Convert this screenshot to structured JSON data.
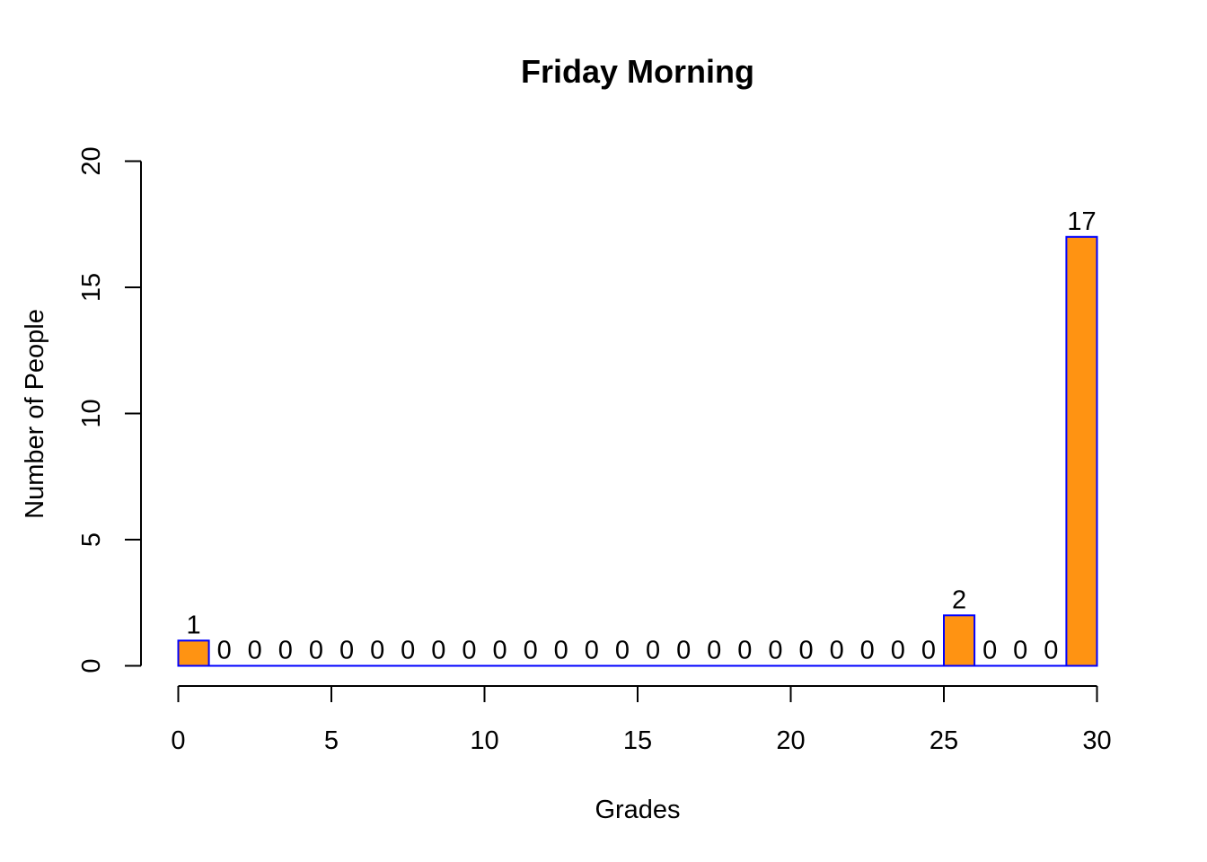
{
  "chart_data": {
    "type": "bar",
    "title": "Friday Morning",
    "xlabel": "Grades",
    "ylabel": "Number of People",
    "bin_width": 1,
    "bins_start": [
      0,
      1,
      2,
      3,
      4,
      5,
      6,
      7,
      8,
      9,
      10,
      11,
      12,
      13,
      14,
      15,
      16,
      17,
      18,
      19,
      20,
      21,
      22,
      23,
      24,
      25,
      26,
      27,
      28,
      29
    ],
    "values": [
      1,
      0,
      0,
      0,
      0,
      0,
      0,
      0,
      0,
      0,
      0,
      0,
      0,
      0,
      0,
      0,
      0,
      0,
      0,
      0,
      0,
      0,
      0,
      0,
      0,
      2,
      0,
      0,
      0,
      17
    ],
    "xlim": [
      0,
      30
    ],
    "ylim": [
      0,
      20
    ],
    "x_ticks": [
      "0",
      "5",
      "10",
      "15",
      "20",
      "25",
      "30"
    ],
    "y_ticks": [
      "0",
      "5",
      "10",
      "15",
      "20"
    ],
    "grid": false,
    "bar_fill": "#FF9312",
    "bar_border": "#0000FF"
  }
}
